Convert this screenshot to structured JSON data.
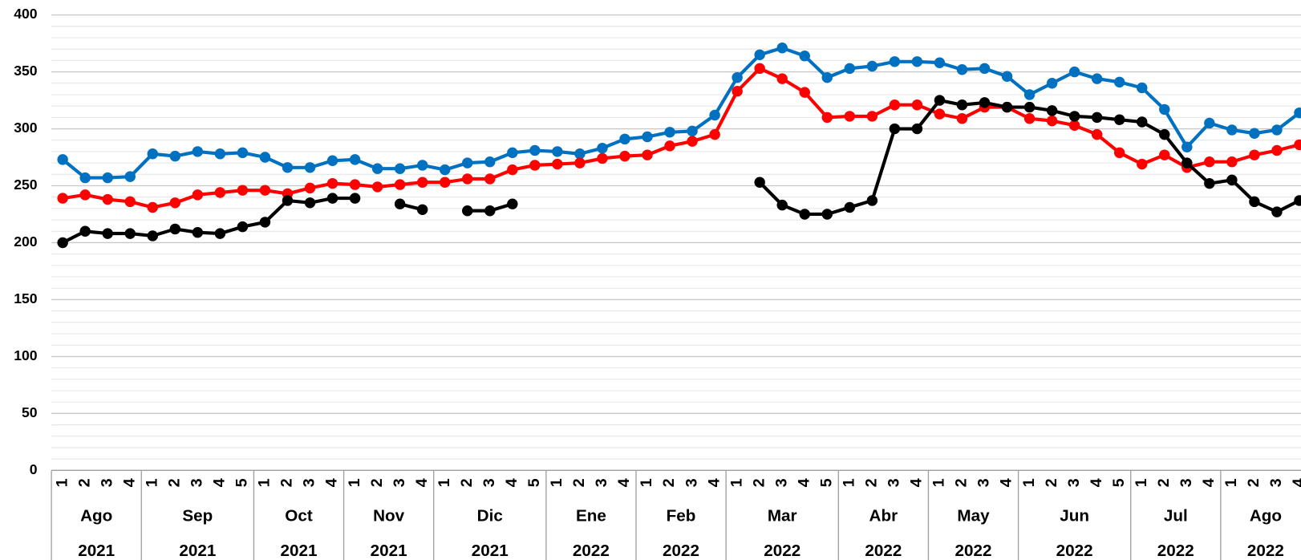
{
  "chart_data": {
    "type": "line",
    "categories": [
      [
        "1",
        "Ago",
        "2021"
      ],
      [
        "2",
        "Ago",
        "2021"
      ],
      [
        "3",
        "Ago",
        "2021"
      ],
      [
        "4",
        "Ago",
        "2021"
      ],
      [
        "1",
        "Sep",
        "2021"
      ],
      [
        "2",
        "Sep",
        "2021"
      ],
      [
        "3",
        "Sep",
        "2021"
      ],
      [
        "4",
        "Sep",
        "2021"
      ],
      [
        "5",
        "Sep",
        "2021"
      ],
      [
        "1",
        "Oct",
        "2021"
      ],
      [
        "2",
        "Oct",
        "2021"
      ],
      [
        "3",
        "Oct",
        "2021"
      ],
      [
        "4",
        "Oct",
        "2021"
      ],
      [
        "1",
        "Nov",
        "2021"
      ],
      [
        "2",
        "Nov",
        "2021"
      ],
      [
        "3",
        "Nov",
        "2021"
      ],
      [
        "4",
        "Nov",
        "2021"
      ],
      [
        "1",
        "Dic",
        "2021"
      ],
      [
        "2",
        "Dic",
        "2021"
      ],
      [
        "3",
        "Dic",
        "2021"
      ],
      [
        "4",
        "Dic",
        "2021"
      ],
      [
        "5",
        "Dic",
        "2021"
      ],
      [
        "1",
        "Ene",
        "2022"
      ],
      [
        "2",
        "Ene",
        "2022"
      ],
      [
        "3",
        "Ene",
        "2022"
      ],
      [
        "4",
        "Ene",
        "2022"
      ],
      [
        "1",
        "Feb",
        "2022"
      ],
      [
        "2",
        "Feb",
        "2022"
      ],
      [
        "3",
        "Feb",
        "2022"
      ],
      [
        "4",
        "Feb",
        "2022"
      ],
      [
        "1",
        "Mar",
        "2022"
      ],
      [
        "2",
        "Mar",
        "2022"
      ],
      [
        "3",
        "Mar",
        "2022"
      ],
      [
        "4",
        "Mar",
        "2022"
      ],
      [
        "5",
        "Mar",
        "2022"
      ],
      [
        "1",
        "Abr",
        "2022"
      ],
      [
        "2",
        "Abr",
        "2022"
      ],
      [
        "3",
        "Abr",
        "2022"
      ],
      [
        "4",
        "Abr",
        "2022"
      ],
      [
        "1",
        "May",
        "2022"
      ],
      [
        "2",
        "May",
        "2022"
      ],
      [
        "3",
        "May",
        "2022"
      ],
      [
        "4",
        "May",
        "2022"
      ],
      [
        "1",
        "Jun",
        "2022"
      ],
      [
        "2",
        "Jun",
        "2022"
      ],
      [
        "3",
        "Jun",
        "2022"
      ],
      [
        "4",
        "Jun",
        "2022"
      ],
      [
        "5",
        "Jun",
        "2022"
      ],
      [
        "1",
        "Jul",
        "2022"
      ],
      [
        "2",
        "Jul",
        "2022"
      ],
      [
        "3",
        "Jul",
        "2022"
      ],
      [
        "4",
        "Jul",
        "2022"
      ],
      [
        "1",
        "Ago",
        "2022"
      ],
      [
        "2",
        "Ago",
        "2022"
      ],
      [
        "3",
        "Ago",
        "2022"
      ],
      [
        "4",
        "Ago",
        "2022"
      ]
    ],
    "series": [
      {
        "color": "#0070c0",
        "values": [
          273,
          257,
          257,
          258,
          278,
          276,
          280,
          278,
          279,
          275,
          266,
          266,
          272,
          273,
          265,
          265,
          268,
          264,
          270,
          271,
          279,
          281,
          280,
          278,
          283,
          291,
          293,
          297,
          298,
          312,
          345,
          365,
          371,
          364,
          345,
          353,
          355,
          359,
          359,
          358,
          352,
          353,
          346,
          330,
          340,
          350,
          344,
          341,
          336,
          317,
          284,
          305,
          299,
          296,
          299,
          314
        ]
      },
      {
        "color": "#ff0000",
        "values": [
          239,
          242,
          238,
          236,
          231,
          235,
          242,
          244,
          246,
          246,
          243,
          248,
          252,
          251,
          249,
          251,
          253,
          253,
          256,
          256,
          264,
          268,
          269,
          270,
          274,
          276,
          277,
          285,
          289,
          295,
          333,
          353,
          344,
          332,
          310,
          311,
          311,
          321,
          321,
          313,
          309,
          319,
          319,
          309,
          307,
          303,
          295,
          279,
          269,
          277,
          266,
          271,
          271,
          277,
          281,
          286
        ]
      },
      {
        "color": "#000000",
        "values": [
          200,
          210,
          208,
          208,
          206,
          212,
          209,
          208,
          214,
          218,
          237,
          235,
          239,
          239,
          null,
          234,
          229,
          null,
          228,
          228,
          234,
          null,
          null,
          null,
          null,
          null,
          null,
          null,
          null,
          null,
          null,
          253,
          233,
          225,
          225,
          231,
          237,
          300,
          300,
          325,
          321,
          323,
          319,
          319,
          316,
          311,
          310,
          308,
          306,
          295,
          270,
          252,
          255,
          236,
          227,
          237
        ]
      }
    ],
    "ylim": [
      0,
      400
    ],
    "yticks": [
      0,
      50,
      100,
      150,
      200,
      250,
      300,
      350,
      400
    ],
    "minor_yticks": [
      10,
      20,
      30,
      40,
      60,
      70,
      80,
      90,
      110,
      120,
      130,
      140,
      160,
      170,
      180,
      190,
      210,
      220,
      230,
      240,
      260,
      270,
      280,
      290,
      310,
      320,
      330,
      340,
      360,
      370,
      380,
      390
    ],
    "grid": true
  }
}
